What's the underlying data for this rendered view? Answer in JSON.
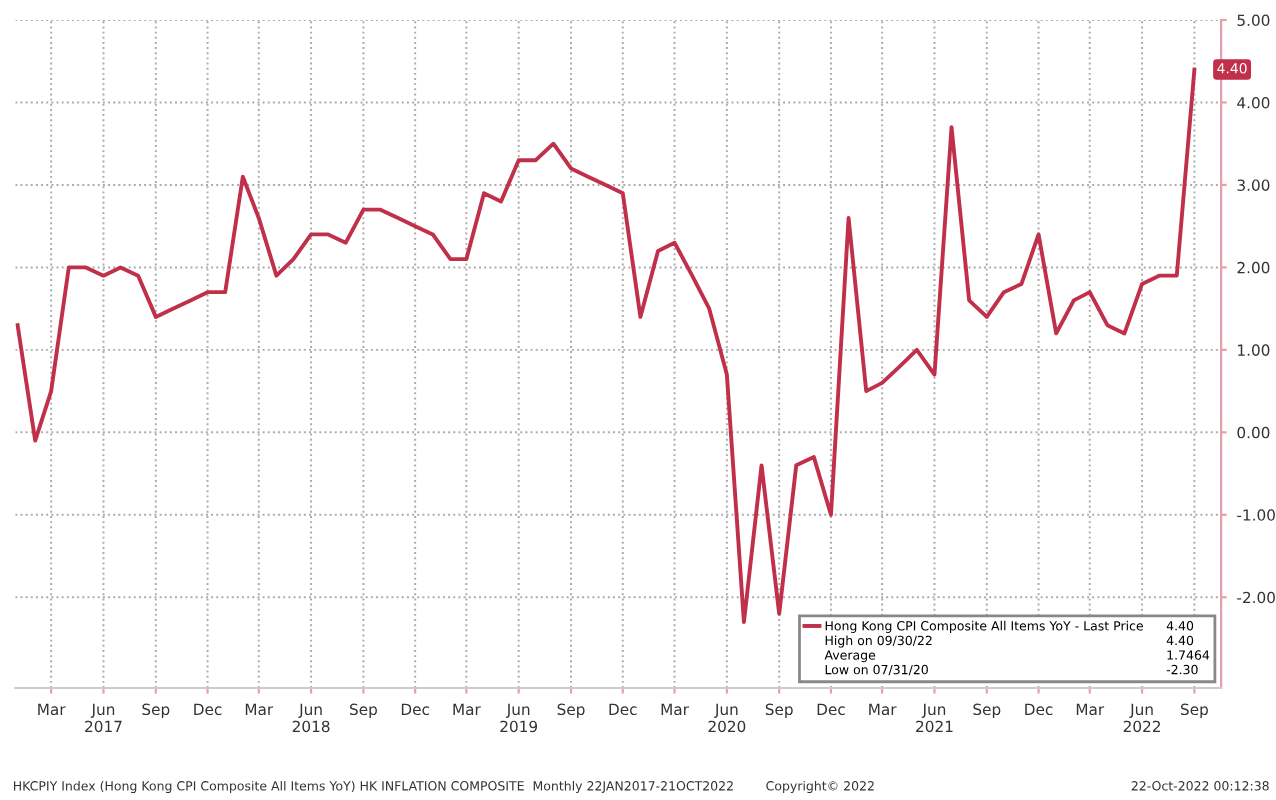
{
  "chart_data": {
    "type": "line",
    "x": [
      "2017-01",
      "2017-02",
      "2017-03",
      "2017-04",
      "2017-05",
      "2017-06",
      "2017-07",
      "2017-08",
      "2017-09",
      "2017-10",
      "2017-11",
      "2017-12",
      "2018-01",
      "2018-02",
      "2018-03",
      "2018-04",
      "2018-05",
      "2018-06",
      "2018-07",
      "2018-08",
      "2018-09",
      "2018-10",
      "2018-11",
      "2018-12",
      "2019-01",
      "2019-02",
      "2019-03",
      "2019-04",
      "2019-05",
      "2019-06",
      "2019-07",
      "2019-08",
      "2019-09",
      "2019-10",
      "2019-11",
      "2019-12",
      "2020-01",
      "2020-02",
      "2020-03",
      "2020-04",
      "2020-05",
      "2020-06",
      "2020-07",
      "2020-08",
      "2020-09",
      "2020-10",
      "2020-11",
      "2020-12",
      "2021-01",
      "2021-02",
      "2021-03",
      "2021-04",
      "2021-05",
      "2021-06",
      "2021-07",
      "2021-08",
      "2021-09",
      "2021-10",
      "2021-11",
      "2021-12",
      "2022-01",
      "2022-02",
      "2022-03",
      "2022-04",
      "2022-05",
      "2022-06",
      "2022-07",
      "2022-08",
      "2022-09"
    ],
    "series": [
      {
        "name": "Hong Kong CPI Composite All Items YoY - Last Price",
        "color": "#c0304a",
        "values": [
          1.3,
          -0.1,
          0.5,
          2.0,
          2.0,
          1.9,
          2.0,
          1.9,
          1.4,
          1.5,
          1.6,
          1.7,
          1.7,
          3.1,
          2.6,
          1.9,
          2.1,
          2.4,
          2.4,
          2.3,
          2.7,
          2.7,
          2.6,
          2.5,
          2.4,
          2.1,
          2.1,
          2.9,
          2.8,
          3.3,
          3.3,
          3.5,
          3.2,
          3.1,
          3.0,
          2.9,
          1.4,
          2.2,
          2.3,
          1.9,
          1.5,
          0.7,
          -2.3,
          -0.4,
          -2.2,
          -0.4,
          -0.3,
          -1.0,
          2.6,
          0.5,
          0.6,
          0.8,
          1.0,
          0.7,
          3.7,
          1.6,
          1.4,
          1.7,
          1.8,
          2.4,
          1.2,
          1.6,
          1.7,
          1.3,
          1.2,
          1.8,
          1.9,
          1.9,
          4.4
        ]
      }
    ],
    "xlim": [
      "2016-12-28",
      "2022-10-18"
    ],
    "xticks": [
      {
        "value": "2017-03",
        "label": "Mar"
      },
      {
        "value": "2017-06",
        "label": "Jun\n2017"
      },
      {
        "value": "2017-09",
        "label": "Sep"
      },
      {
        "value": "2017-12",
        "label": "Dec"
      },
      {
        "value": "2018-03",
        "label": "Mar"
      },
      {
        "value": "2018-06",
        "label": "Jun\n2018"
      },
      {
        "value": "2018-09",
        "label": "Sep"
      },
      {
        "value": "2018-12",
        "label": "Dec"
      },
      {
        "value": "2019-03",
        "label": "Mar"
      },
      {
        "value": "2019-06",
        "label": "Jun\n2019"
      },
      {
        "value": "2019-09",
        "label": "Sep"
      },
      {
        "value": "2019-12",
        "label": "Dec"
      },
      {
        "value": "2020-03",
        "label": "Mar"
      },
      {
        "value": "2020-06",
        "label": "Jun\n2020"
      },
      {
        "value": "2020-09",
        "label": "Sep"
      },
      {
        "value": "2020-12",
        "label": "Dec"
      },
      {
        "value": "2021-03",
        "label": "Mar"
      },
      {
        "value": "2021-06",
        "label": "Jun\n2021"
      },
      {
        "value": "2021-09",
        "label": "Sep"
      },
      {
        "value": "2021-12",
        "label": "Dec"
      },
      {
        "value": "2022-03",
        "label": "Mar"
      },
      {
        "value": "2022-06",
        "label": "Jun\n2022"
      },
      {
        "value": "2022-09",
        "label": "Sep"
      }
    ],
    "ylim": [
      -3.1,
      5.0
    ],
    "yticks": [
      {
        "value": -2,
        "label": "-2.00"
      },
      {
        "value": -1,
        "label": "-1.00"
      },
      {
        "value": 0,
        "label": "0.00"
      },
      {
        "value": 1,
        "label": "1.00"
      },
      {
        "value": 2,
        "label": "2.00"
      },
      {
        "value": 3,
        "label": "3.00"
      },
      {
        "value": 4,
        "label": "4.00"
      },
      {
        "value": 5,
        "label": "5.00"
      }
    ],
    "grid": true,
    "legend": "bottom right",
    "marker": "none",
    "line_style": "solid",
    "annotations": [
      {
        "text": "4.40",
        "x": "2022-09",
        "y": 4.4
      },
      "4.40",
      "High on 09/30/22",
      "4.40",
      "Average",
      "1.7464",
      "Low on 07/31/20",
      "-2.30",
      "HKCPIY Index (Hong Kong CPI Composite All Items YoY) HK INFLATION COMPOSITE  Monthly 22JAN2017-21OCT2022",
      "Copyright© 2022",
      "22-Oct-2022 00:12:38"
    ]
  }
}
